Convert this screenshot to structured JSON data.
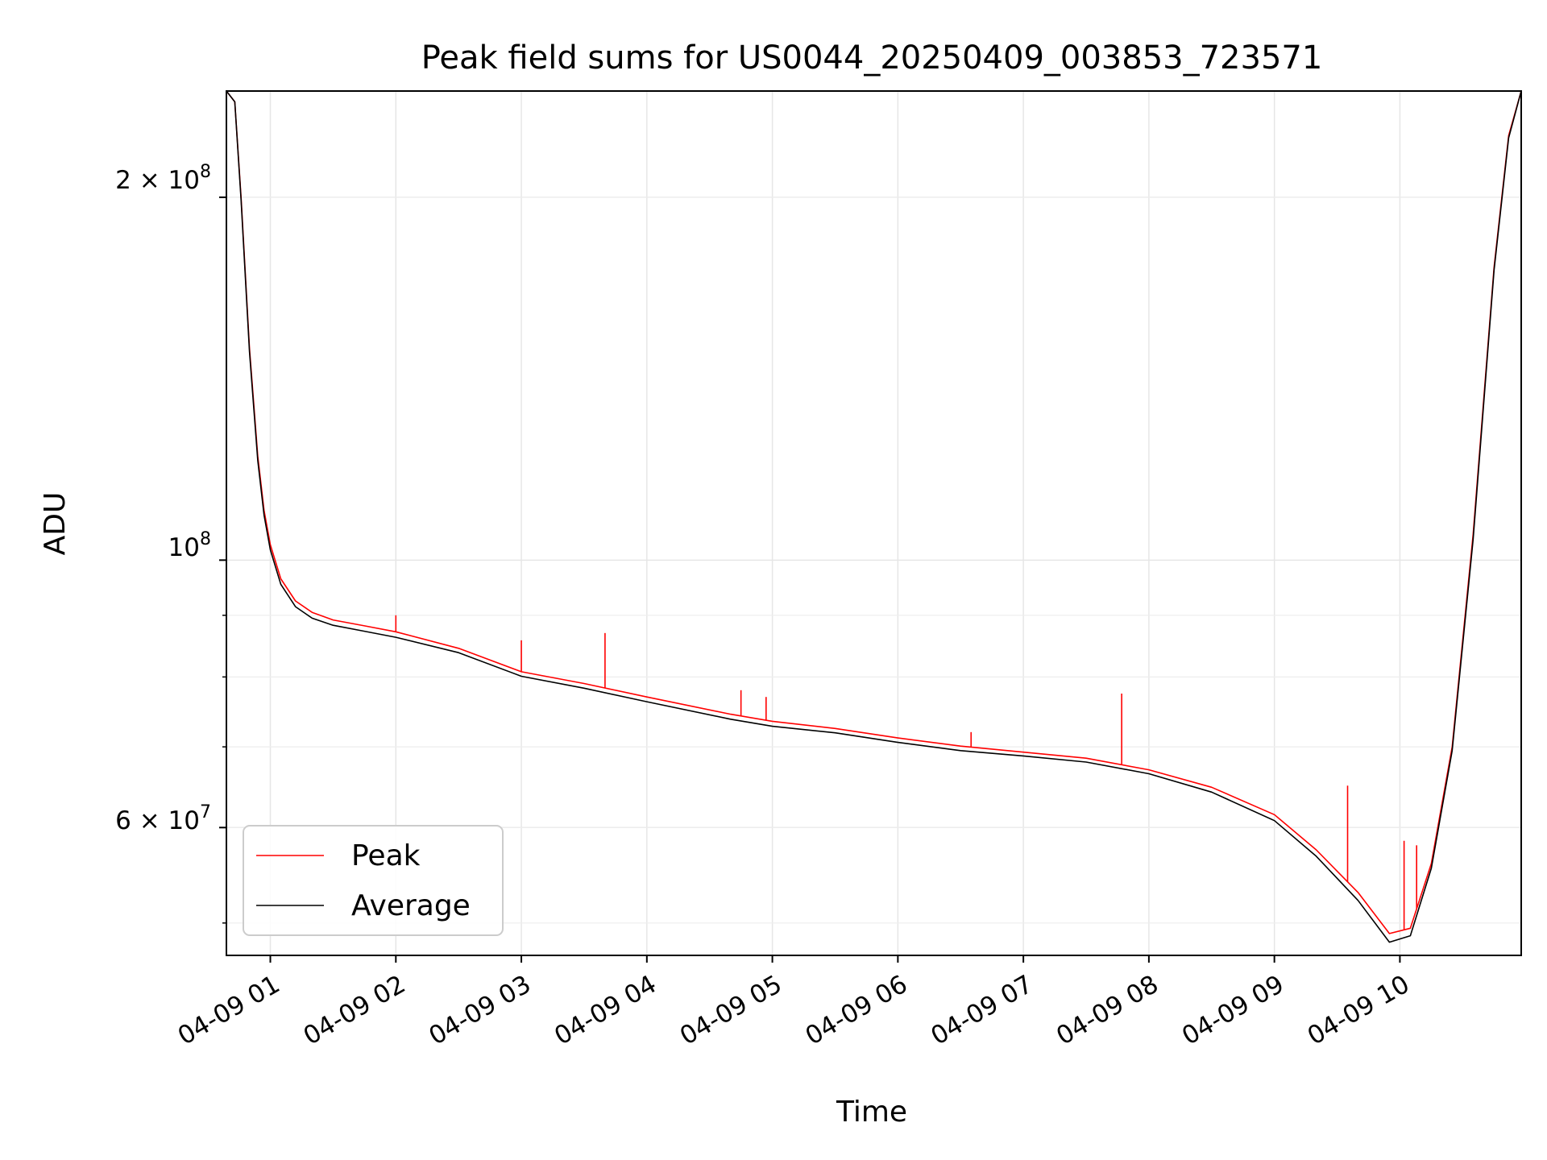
{
  "chart_data": {
    "type": "line",
    "title": "Peak field sums for US0044_20250409_003853_723571",
    "xlabel": "Time",
    "ylabel": "ADU",
    "yscale": "log",
    "ylim": [
      47000000,
      245000000
    ],
    "xlim": [
      "2025-04-09 00:39",
      "2025-04-09 10:58"
    ],
    "grid": true,
    "legend_position": "lower-left",
    "x_tick_labels": [
      "04-09 01",
      "04-09 02",
      "04-09 03",
      "04-09 04",
      "04-09 05",
      "04-09 06",
      "04-09 07",
      "04-09 08",
      "04-09 09",
      "04-09 10"
    ],
    "x_tick_times": [
      "2025-04-09 01:00",
      "2025-04-09 02:00",
      "2025-04-09 03:00",
      "2025-04-09 04:00",
      "2025-04-09 05:00",
      "2025-04-09 06:00",
      "2025-04-09 07:00",
      "2025-04-09 08:00",
      "2025-04-09 09:00",
      "2025-04-09 10:00"
    ],
    "y_major_ticks": [
      {
        "value": 200000000,
        "base": "2",
        "exp": "8"
      },
      {
        "value": 100000000,
        "base": "",
        "exp": "8"
      },
      {
        "value": 60000000,
        "base": "6",
        "exp": "7"
      }
    ],
    "y_minor_ticks": [
      50000000,
      60000000,
      70000000,
      80000000,
      90000000,
      200000000
    ],
    "series": [
      {
        "name": "Peak",
        "color": "#ff0000",
        "x": [
          "2025-04-09 00:39",
          "2025-04-09 00:43",
          "2025-04-09 00:46",
          "2025-04-09 00:50",
          "2025-04-09 00:54",
          "2025-04-09 00:57",
          "2025-04-09 01:00",
          "2025-04-09 01:05",
          "2025-04-09 01:12",
          "2025-04-09 01:20",
          "2025-04-09 01:30",
          "2025-04-09 01:45",
          "2025-04-09 02:00",
          "2025-04-09 02:30",
          "2025-04-09 03:00",
          "2025-04-09 03:30",
          "2025-04-09 04:00",
          "2025-04-09 04:40",
          "2025-04-09 05:00",
          "2025-04-09 05:30",
          "2025-04-09 06:00",
          "2025-04-09 06:30",
          "2025-04-09 07:00",
          "2025-04-09 07:30",
          "2025-04-09 08:00",
          "2025-04-09 08:30",
          "2025-04-09 09:00",
          "2025-04-09 09:20",
          "2025-04-09 09:40",
          "2025-04-09 09:55",
          "2025-04-09 10:05",
          "2025-04-09 10:15",
          "2025-04-09 10:25",
          "2025-04-09 10:35",
          "2025-04-09 10:45",
          "2025-04-09 10:52",
          "2025-04-09 10:58"
        ],
        "y": [
          245000000,
          240000000,
          200000000,
          150000000,
          122000000,
          110000000,
          103000000,
          96500000,
          92500000,
          90500000,
          89200000,
          88200000,
          87200000,
          84500000,
          80800000,
          79000000,
          77000000,
          74500000,
          73500000,
          72500000,
          71200000,
          70100000,
          69300000,
          68500000,
          67000000,
          64800000,
          61500000,
          57500000,
          53000000,
          49000000,
          49500000,
          56000000,
          70000000,
          105000000,
          175000000,
          225000000,
          245000000
        ]
      },
      {
        "name": "Average",
        "color": "#000000",
        "x": [
          "2025-04-09 00:39",
          "2025-04-09 00:43",
          "2025-04-09 00:46",
          "2025-04-09 00:50",
          "2025-04-09 00:54",
          "2025-04-09 00:57",
          "2025-04-09 01:00",
          "2025-04-09 01:05",
          "2025-04-09 01:12",
          "2025-04-09 01:20",
          "2025-04-09 01:30",
          "2025-04-09 01:45",
          "2025-04-09 02:00",
          "2025-04-09 02:30",
          "2025-04-09 03:00",
          "2025-04-09 03:30",
          "2025-04-09 04:00",
          "2025-04-09 04:40",
          "2025-04-09 05:00",
          "2025-04-09 05:30",
          "2025-04-09 06:00",
          "2025-04-09 06:30",
          "2025-04-09 07:00",
          "2025-04-09 07:30",
          "2025-04-09 08:00",
          "2025-04-09 08:30",
          "2025-04-09 09:00",
          "2025-04-09 09:20",
          "2025-04-09 09:40",
          "2025-04-09 09:55",
          "2025-04-09 10:05",
          "2025-04-09 10:15",
          "2025-04-09 10:25",
          "2025-04-09 10:35",
          "2025-04-09 10:45",
          "2025-04-09 10:52",
          "2025-04-09 10:58"
        ],
        "y": [
          245000000,
          240000000,
          199000000,
          149000000,
          121000000,
          109000000,
          102000000,
          95500000,
          91500000,
          89500000,
          88300000,
          87300000,
          86300000,
          83800000,
          80100000,
          78300000,
          76300000,
          73800000,
          72800000,
          71900000,
          70600000,
          69500000,
          68800000,
          68000000,
          66500000,
          64200000,
          60800000,
          56800000,
          52200000,
          48200000,
          48800000,
          55500000,
          69500000,
          104000000,
          174000000,
          224000000,
          245000000
        ]
      }
    ],
    "spikes": [
      {
        "series": "Peak",
        "x": "2025-04-09 02:00",
        "y": 90000000
      },
      {
        "series": "Peak",
        "x": "2025-04-09 03:00",
        "y": 85800000
      },
      {
        "series": "Peak",
        "x": "2025-04-09 03:40",
        "y": 87000000
      },
      {
        "series": "Peak",
        "x": "2025-04-09 04:45",
        "y": 78000000
      },
      {
        "series": "Peak",
        "x": "2025-04-09 04:57",
        "y": 77000000
      },
      {
        "series": "Peak",
        "x": "2025-04-09 06:35",
        "y": 72000000
      },
      {
        "series": "Peak",
        "x": "2025-04-09 07:47",
        "y": 77500000
      },
      {
        "series": "Peak",
        "x": "2025-04-09 09:35",
        "y": 65000000
      },
      {
        "series": "Peak",
        "x": "2025-04-09 10:02",
        "y": 58500000
      },
      {
        "series": "Peak",
        "x": "2025-04-09 10:08",
        "y": 58000000
      }
    ]
  },
  "legend": {
    "items": [
      {
        "label": "Peak",
        "color": "#ff0000"
      },
      {
        "label": "Average",
        "color": "#000000"
      }
    ]
  },
  "y_tick_labels": {
    "tick_2e8": {
      "mant": "2",
      "exp": "8"
    },
    "tick_1e8": {
      "mant": "10",
      "exp": "8"
    },
    "tick_6e7": {
      "mant": "6",
      "exp": "7"
    }
  }
}
